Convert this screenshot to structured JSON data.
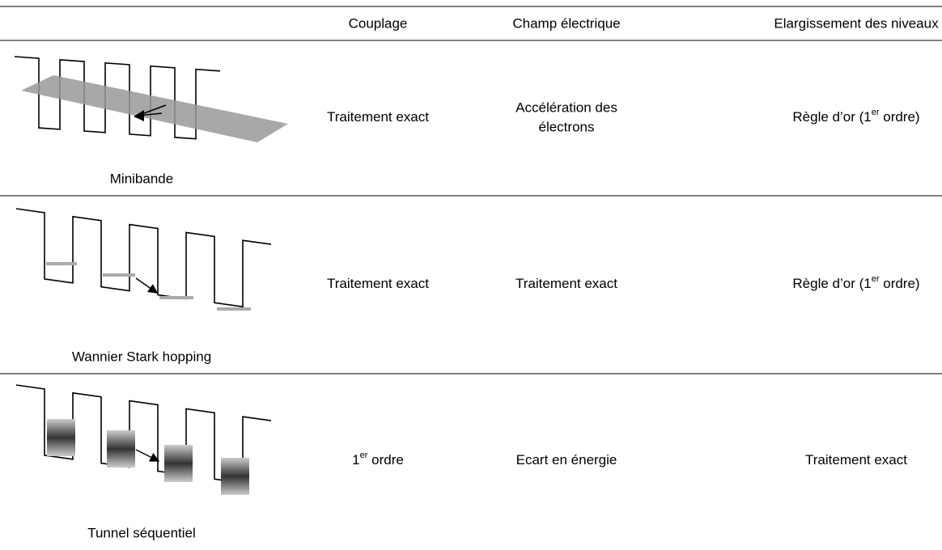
{
  "table": {
    "header": [
      "Couplage",
      "Champ électrique",
      "Elargissement des niveaux"
    ],
    "rows": [
      {
        "label": "Minibande",
        "cells": [
          {
            "text": "Traitement exact"
          },
          {
            "lines": [
              "Accélération des",
              "électrons"
            ]
          },
          {
            "text": "Règle d’or (1",
            "sup": "er",
            "after": " ordre)"
          }
        ]
      },
      {
        "label": "Wannier Stark hopping",
        "cells": [
          {
            "text": "Traitement exact"
          },
          {
            "text": "Traitement exact"
          },
          {
            "text": "Règle d’or (1",
            "sup": "er",
            "after": " ordre)"
          }
        ]
      },
      {
        "label": "Tunnel séquentiel",
        "cells": [
          {
            "text": "1",
            "sup": "er",
            "after": " ordre"
          },
          {
            "text": "Ecart en énergie"
          },
          {
            "text": "Traitement exact"
          }
        ]
      }
    ]
  }
}
